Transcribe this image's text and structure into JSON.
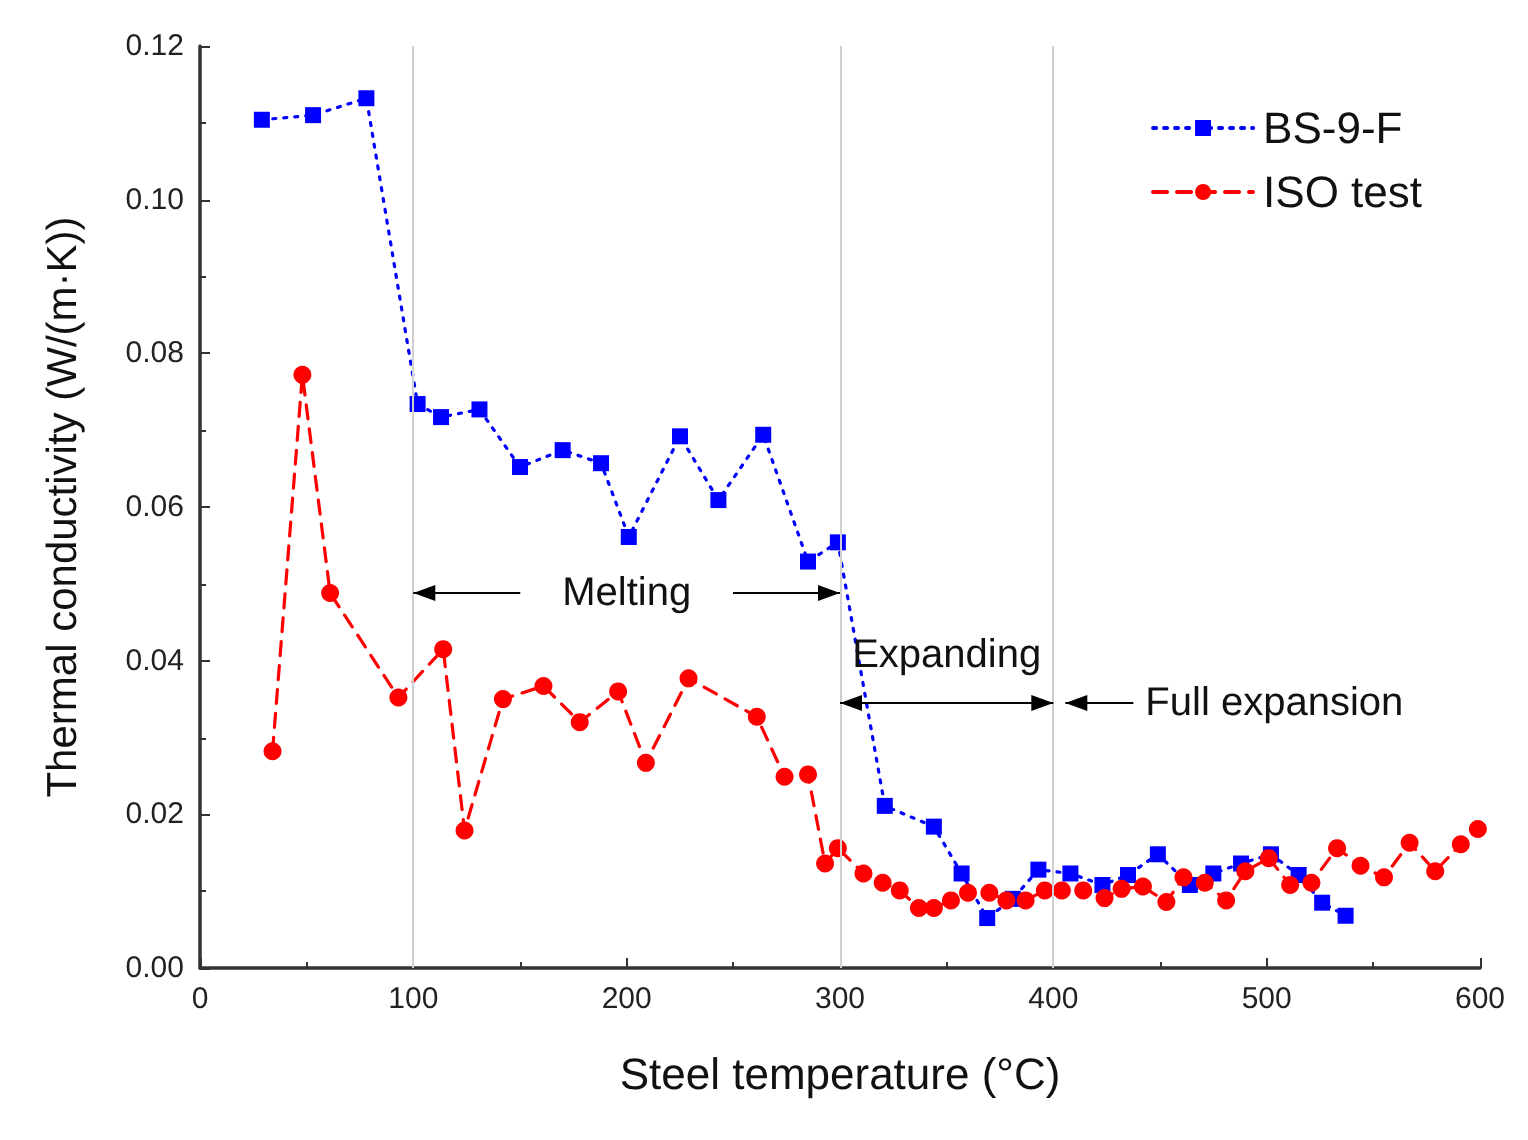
{
  "chart_data": {
    "type": "line",
    "xlabel": "Steel temperature (°C)",
    "ylabel": "Thermal conductivity (W/(m·K))",
    "xlim": [
      0,
      600
    ],
    "xticks": [
      0,
      100,
      200,
      300,
      400,
      500,
      600
    ],
    "ylim": [
      0,
      0.12
    ],
    "yticks": [
      {
        "value": 0,
        "label": "0.00"
      },
      {
        "value": 0.02,
        "label": "0.02"
      },
      {
        "value": 0.04,
        "label": "0.04"
      },
      {
        "value": 0.06,
        "label": "0.06"
      },
      {
        "value": 0.08,
        "label": "0.08"
      },
      {
        "value": 0.1,
        "label": "0.10"
      },
      {
        "value": 0.12,
        "label": "0.12"
      }
    ],
    "grid": false,
    "legend": "top right",
    "series": [
      {
        "name": "BS-9-F",
        "color": "#0000ff",
        "marker": "square",
        "line_style": "dotted",
        "x": [
          29,
          53,
          78,
          102,
          113,
          131,
          150,
          170,
          188,
          201,
          225,
          243,
          264,
          285,
          299,
          321,
          344,
          357,
          369,
          381,
          393,
          408,
          423,
          435,
          449,
          464,
          475,
          488,
          502,
          515,
          526,
          537
        ],
        "values": [
          0.1104,
          0.111,
          0.1132,
          0.0734,
          0.0717,
          0.0727,
          0.0652,
          0.0674,
          0.0657,
          0.0561,
          0.0692,
          0.0609,
          0.0694,
          0.0529,
          0.0554,
          0.0211,
          0.0184,
          0.0123,
          0.0065,
          0.009,
          0.0128,
          0.0123,
          0.0108,
          0.0121,
          0.0148,
          0.0108,
          0.0123,
          0.0136,
          0.0148,
          0.0121,
          0.0085,
          0.0068
        ]
      },
      {
        "name": "ISO test",
        "color": "#ff0000",
        "marker": "circle",
        "line_style": "dashed",
        "x": [
          34,
          48,
          61,
          93,
          114,
          124,
          142,
          161,
          178,
          196,
          209,
          229,
          261,
          274,
          285,
          293,
          299,
          311,
          320,
          328,
          337,
          344,
          352,
          360,
          370,
          378,
          387,
          396,
          404,
          414,
          424,
          432,
          442,
          453,
          461,
          471,
          481,
          490,
          501,
          511,
          521,
          533,
          544,
          555,
          567,
          579,
          591,
          599
        ],
        "values": [
          0.0282,
          0.0772,
          0.0488,
          0.0352,
          0.0415,
          0.0179,
          0.035,
          0.0367,
          0.032,
          0.036,
          0.0267,
          0.0377,
          0.0327,
          0.0249,
          0.0252,
          0.0136,
          0.0156,
          0.0123,
          0.0111,
          0.0101,
          0.0078,
          0.0078,
          0.0088,
          0.0098,
          0.0098,
          0.0088,
          0.0088,
          0.0101,
          0.0101,
          0.0101,
          0.0091,
          0.0103,
          0.0106,
          0.0086,
          0.0118,
          0.0111,
          0.0088,
          0.0126,
          0.0143,
          0.0108,
          0.0111,
          0.0156,
          0.0133,
          0.0118,
          0.0163,
          0.0126,
          0.0161,
          0.0181
        ]
      }
    ],
    "ref_lines": [
      {
        "axis": "x",
        "value": 100,
        "color": "#d0d0d0"
      },
      {
        "axis": "x",
        "value": 300,
        "color": "#d0d0d0"
      },
      {
        "axis": "x",
        "value": 400,
        "color": "#d0d0d0"
      }
    ],
    "annotations": [
      {
        "text": "Melting",
        "x": 100,
        "y": 0.0488
      },
      {
        "text": "Expanding",
        "x": 300,
        "y": 0.0345
      },
      {
        "text": "Full expansion",
        "x": 400,
        "y": 0.0345
      }
    ]
  }
}
